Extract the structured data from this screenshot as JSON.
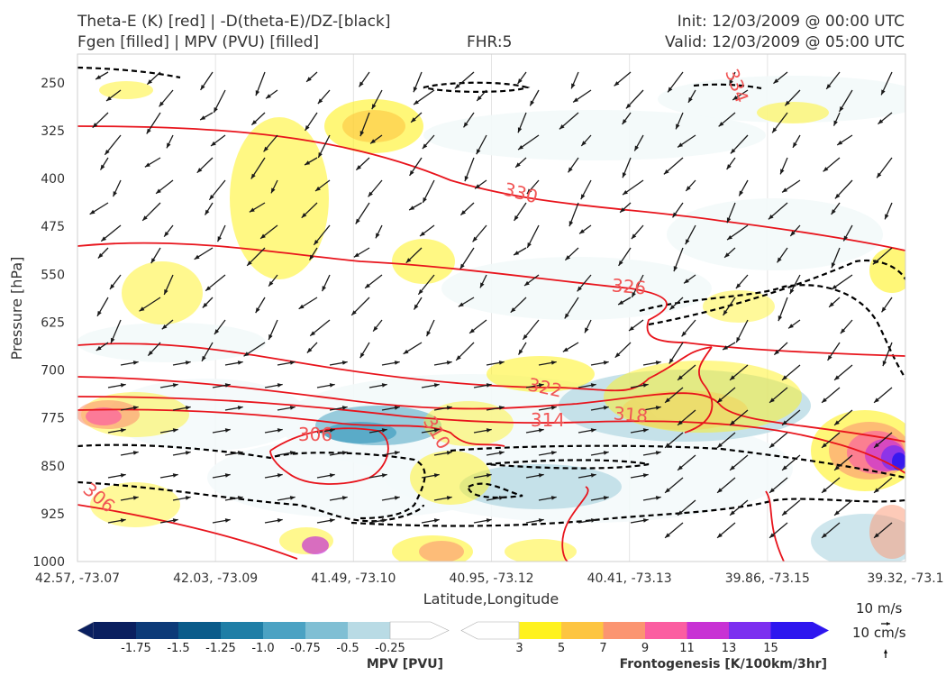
{
  "header": {
    "title_line1": "Theta-E (K) [red] | -D(theta-E)/DZ-[black]",
    "title_line2": "Fgen [filled] | MPV (PVU) [filled]",
    "fhr": "FHR:5",
    "init": "Init: 12/03/2009 @ 00:00 UTC",
    "valid": "Valid: 12/03/2009 @ 05:00 UTC"
  },
  "colors": {
    "theta_e": "#e8141c",
    "stability": "#000000",
    "mpv_ramp": [
      "#0a1f5f",
      "#0c3a78",
      "#0a5b8a",
      "#1f7ea6",
      "#4ba2c3",
      "#80bfd4",
      "#b9dbe5",
      "#f3f9fa"
    ],
    "fgen_ramp": [
      "#ffffff",
      "#fff21e",
      "#fdc541",
      "#fb9571",
      "#fb5ea1",
      "#c832d4",
      "#7c2ff0",
      "#2e16ef"
    ]
  },
  "chart_data": {
    "type": "cross-section",
    "xlabel": "Latitude,Longitude",
    "ylabel": "Pressure [hPa]",
    "x_ticks": [
      "42.57, -73.07",
      "42.03, -73.09",
      "41.49, -73.10",
      "40.95, -73.12",
      "40.41, -73.13",
      "39.86, -73.15",
      "39.32, -73.1"
    ],
    "y_ticks": [
      "250",
      "325",
      "400",
      "475",
      "550",
      "625",
      "700",
      "775",
      "850",
      "925",
      "1000"
    ],
    "ylim": [
      1000,
      205
    ],
    "theta_e_labels": [
      "334",
      "330",
      "326",
      "322",
      "318",
      "314",
      "310",
      "306",
      "306"
    ],
    "mpv_colorbar": {
      "label": "MPV [PVU]",
      "ticks": [
        "-1.75",
        "-1.5",
        "-1.25",
        "-1.0",
        "-0.75",
        "-0.5",
        "-0.25"
      ]
    },
    "fgen_colorbar": {
      "label": "Frontogenesis [K/100km/3hr]",
      "ticks": [
        "3",
        "5",
        "7",
        "9",
        "11",
        "13",
        "15"
      ]
    },
    "wind_key": {
      "horizontal": "10 m/s",
      "vertical": "10 cm/s"
    }
  }
}
